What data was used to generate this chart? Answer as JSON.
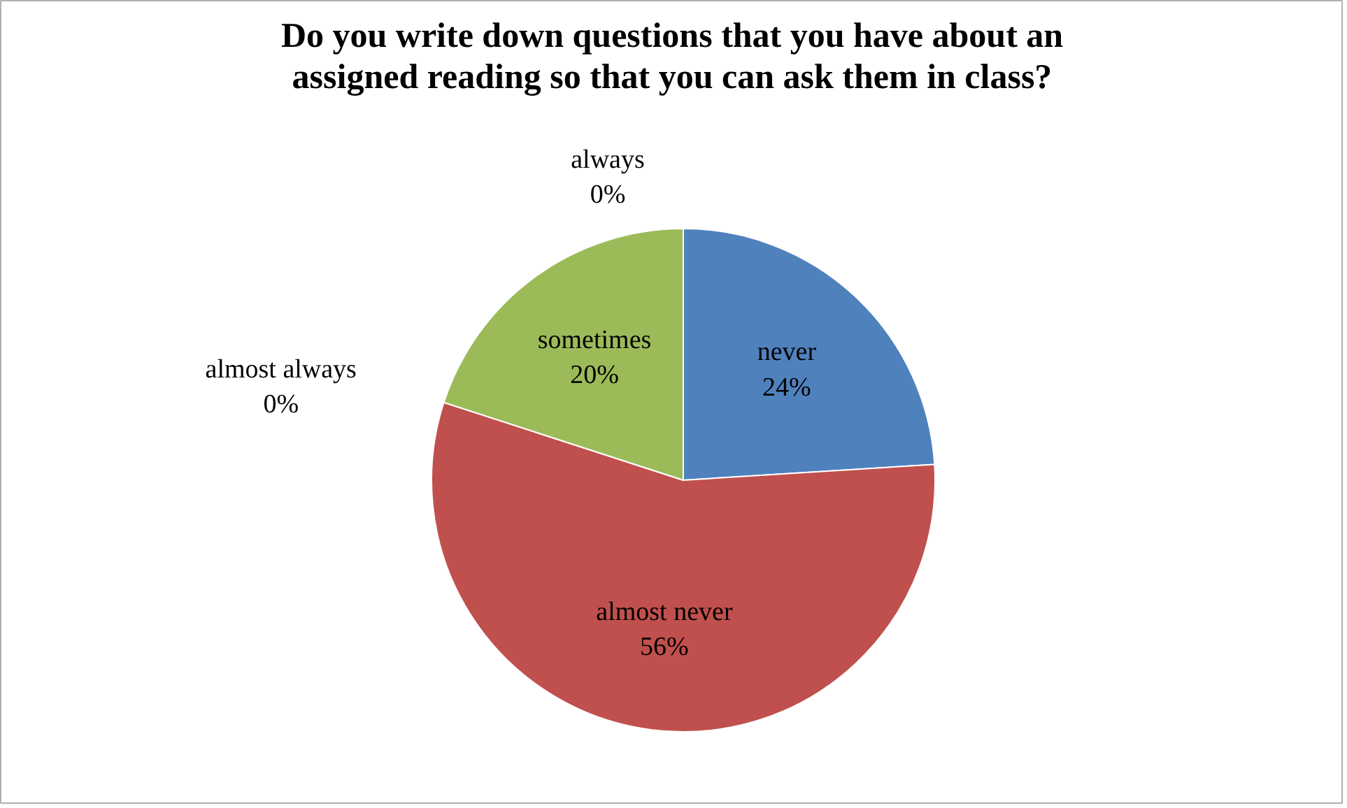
{
  "chart_data": {
    "type": "pie",
    "title": "Do you write down questions that you have about an\nassigned reading so that you can ask them in class?",
    "categories": [
      "never",
      "almost never",
      "sometimes",
      "almost always",
      "always"
    ],
    "values": [
      24,
      56,
      20,
      0,
      0
    ],
    "colors": [
      "#4f81bd",
      "#c0504d",
      "#9bbb59",
      "#8064a2",
      "#4bacc6"
    ],
    "value_labels": [
      "24%",
      "56%",
      "20%",
      "0%",
      "0%"
    ]
  }
}
